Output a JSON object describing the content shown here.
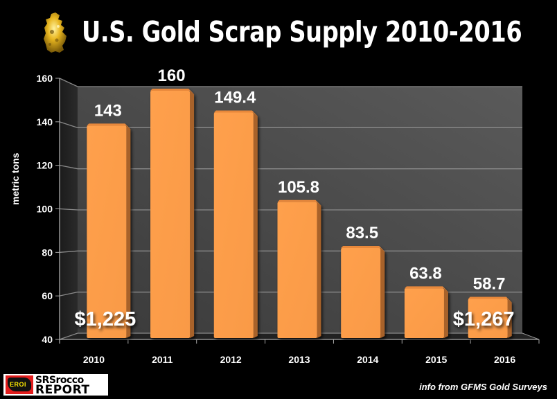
{
  "chart_data": {
    "type": "bar",
    "title": "U.S. Gold Scrap Supply 2010-2016",
    "xlabel": "",
    "ylabel": "metric tons",
    "ylim": [
      40,
      160
    ],
    "yticks": [
      40,
      60,
      80,
      100,
      120,
      140,
      160
    ],
    "grid": true,
    "categories": [
      "2010",
      "2011",
      "2012",
      "2013",
      "2014",
      "2015",
      "2016"
    ],
    "values": [
      143,
      160,
      149.4,
      105.8,
      83.5,
      63.8,
      58.7
    ],
    "data_labels": [
      "143",
      "160",
      "149.4",
      "105.8",
      "83.5",
      "63.8",
      "58.7"
    ],
    "annotations": [
      {
        "text": "$1,225",
        "category": "2010"
      },
      {
        "text": "$1,267",
        "category": "2016"
      }
    ],
    "bar_color": "#ff9a47",
    "style": "3d-column"
  },
  "source": "info from GFMS Gold Surveys",
  "logo": {
    "badge": "EROI",
    "line1": "SRSrocco",
    "line2": "REPORT"
  }
}
